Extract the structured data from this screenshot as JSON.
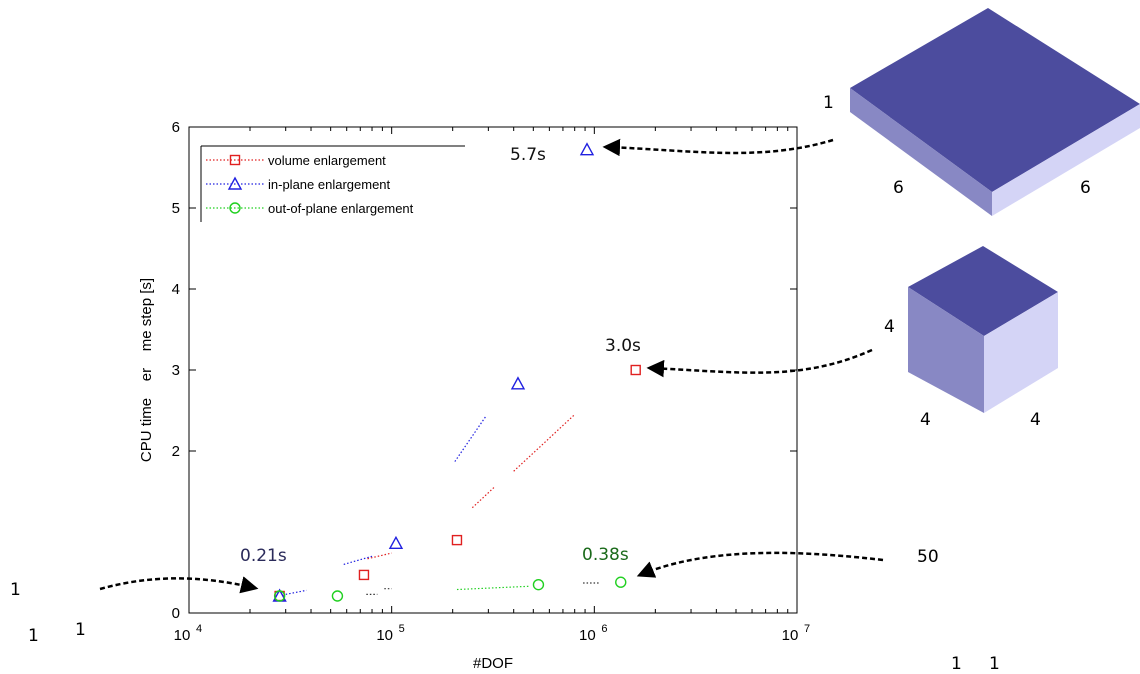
{
  "chart_data": {
    "type": "scatter",
    "xlabel": "#DOF",
    "ylabel": "CPU time    er    me step [s]",
    "xscale": "log",
    "xlim": [
      10000,
      10000000
    ],
    "ylim": [
      0,
      6
    ],
    "x_ticks": [
      {
        "value": 10000,
        "base": "10",
        "exp": "4"
      },
      {
        "value": 100000,
        "base": "10",
        "exp": "5"
      },
      {
        "value": 1000000,
        "base": "10",
        "exp": "6"
      },
      {
        "value": 10000000,
        "base": "10",
        "exp": "7"
      }
    ],
    "y_ticks": [
      {
        "value": 0,
        "label": "0"
      },
      {
        "value": 2,
        "label": "2"
      },
      {
        "value": 3,
        "label": "3"
      },
      {
        "value": 4,
        "label": "4"
      },
      {
        "value": 5,
        "label": "5"
      },
      {
        "value": 6,
        "label": "6"
      }
    ],
    "legend_position": "top-left",
    "series": [
      {
        "name": "volume enlargement",
        "color": "#e02020",
        "marker": "square",
        "points": [
          [
            28000,
            0.21
          ],
          [
            73000,
            0.47
          ],
          [
            210000,
            0.9
          ],
          [
            1600000,
            3.0
          ]
        ],
        "segments": [
          [
            [
              76000,
              0.67
            ],
            [
              100000,
              0.74
            ]
          ],
          [
            [
              250000,
              1.3
            ],
            [
              320000,
              1.55
            ]
          ],
          [
            [
              400000,
              1.75
            ],
            [
              800000,
              2.45
            ]
          ]
        ]
      },
      {
        "name": "in-plane enlargement",
        "color": "#2020e0",
        "marker": "triangle",
        "points": [
          [
            28000,
            0.21
          ],
          [
            105000,
            0.86
          ],
          [
            420000,
            2.83
          ],
          [
            920000,
            5.72
          ]
        ],
        "segments": [
          [
            [
              30000,
              0.23
            ],
            [
              38000,
              0.28
            ]
          ],
          [
            [
              58000,
              0.6
            ],
            [
              80000,
              0.7
            ]
          ],
          [
            [
              205000,
              1.87
            ],
            [
              290000,
              2.42
            ]
          ]
        ]
      },
      {
        "name": "out-of-plane enlargement",
        "color": "#20d020",
        "marker": "circle",
        "points": [
          [
            28000,
            0.21
          ],
          [
            54000,
            0.21
          ],
          [
            530000,
            0.35
          ],
          [
            1350000,
            0.38
          ]
        ],
        "segments": [
          [
            [
              210000,
              0.29
            ],
            [
              480000,
              0.33
            ]
          ]
        ]
      }
    ],
    "dark_segments": [
      [
        [
          75000,
          0.23
        ],
        [
          85000,
          0.23
        ]
      ],
      [
        [
          92000,
          0.3
        ],
        [
          100000,
          0.3
        ]
      ],
      [
        [
          880000,
          0.37
        ],
        [
          1050000,
          0.37
        ]
      ]
    ],
    "annotations": [
      {
        "text": "5.7s",
        "color": "#111111",
        "point": [
          920000,
          5.72
        ]
      },
      {
        "text": "3.0s",
        "color": "#111111",
        "point": [
          1600000,
          3.0
        ]
      },
      {
        "text": "0.21s",
        "color": "#2a2a5a",
        "point": [
          28000,
          0.21
        ]
      },
      {
        "text": "0.38s",
        "color": "#1a6a1a",
        "point": [
          1350000,
          0.38
        ]
      }
    ]
  },
  "geometry_labels": {
    "flat_slab": {
      "thickness": "1",
      "width": "6",
      "depth": "6"
    },
    "cube": {
      "height": "4",
      "width": "4",
      "depth": "4"
    },
    "long_bar": {
      "length": "50",
      "width": "1",
      "depth": "1"
    },
    "unit_cube": {
      "height": "1",
      "width": "1",
      "depth": "1"
    }
  },
  "colors": {
    "solid_top": "#4c4c9e",
    "solid_left": "#8888c4",
    "solid_right": "#d4d4f6"
  }
}
